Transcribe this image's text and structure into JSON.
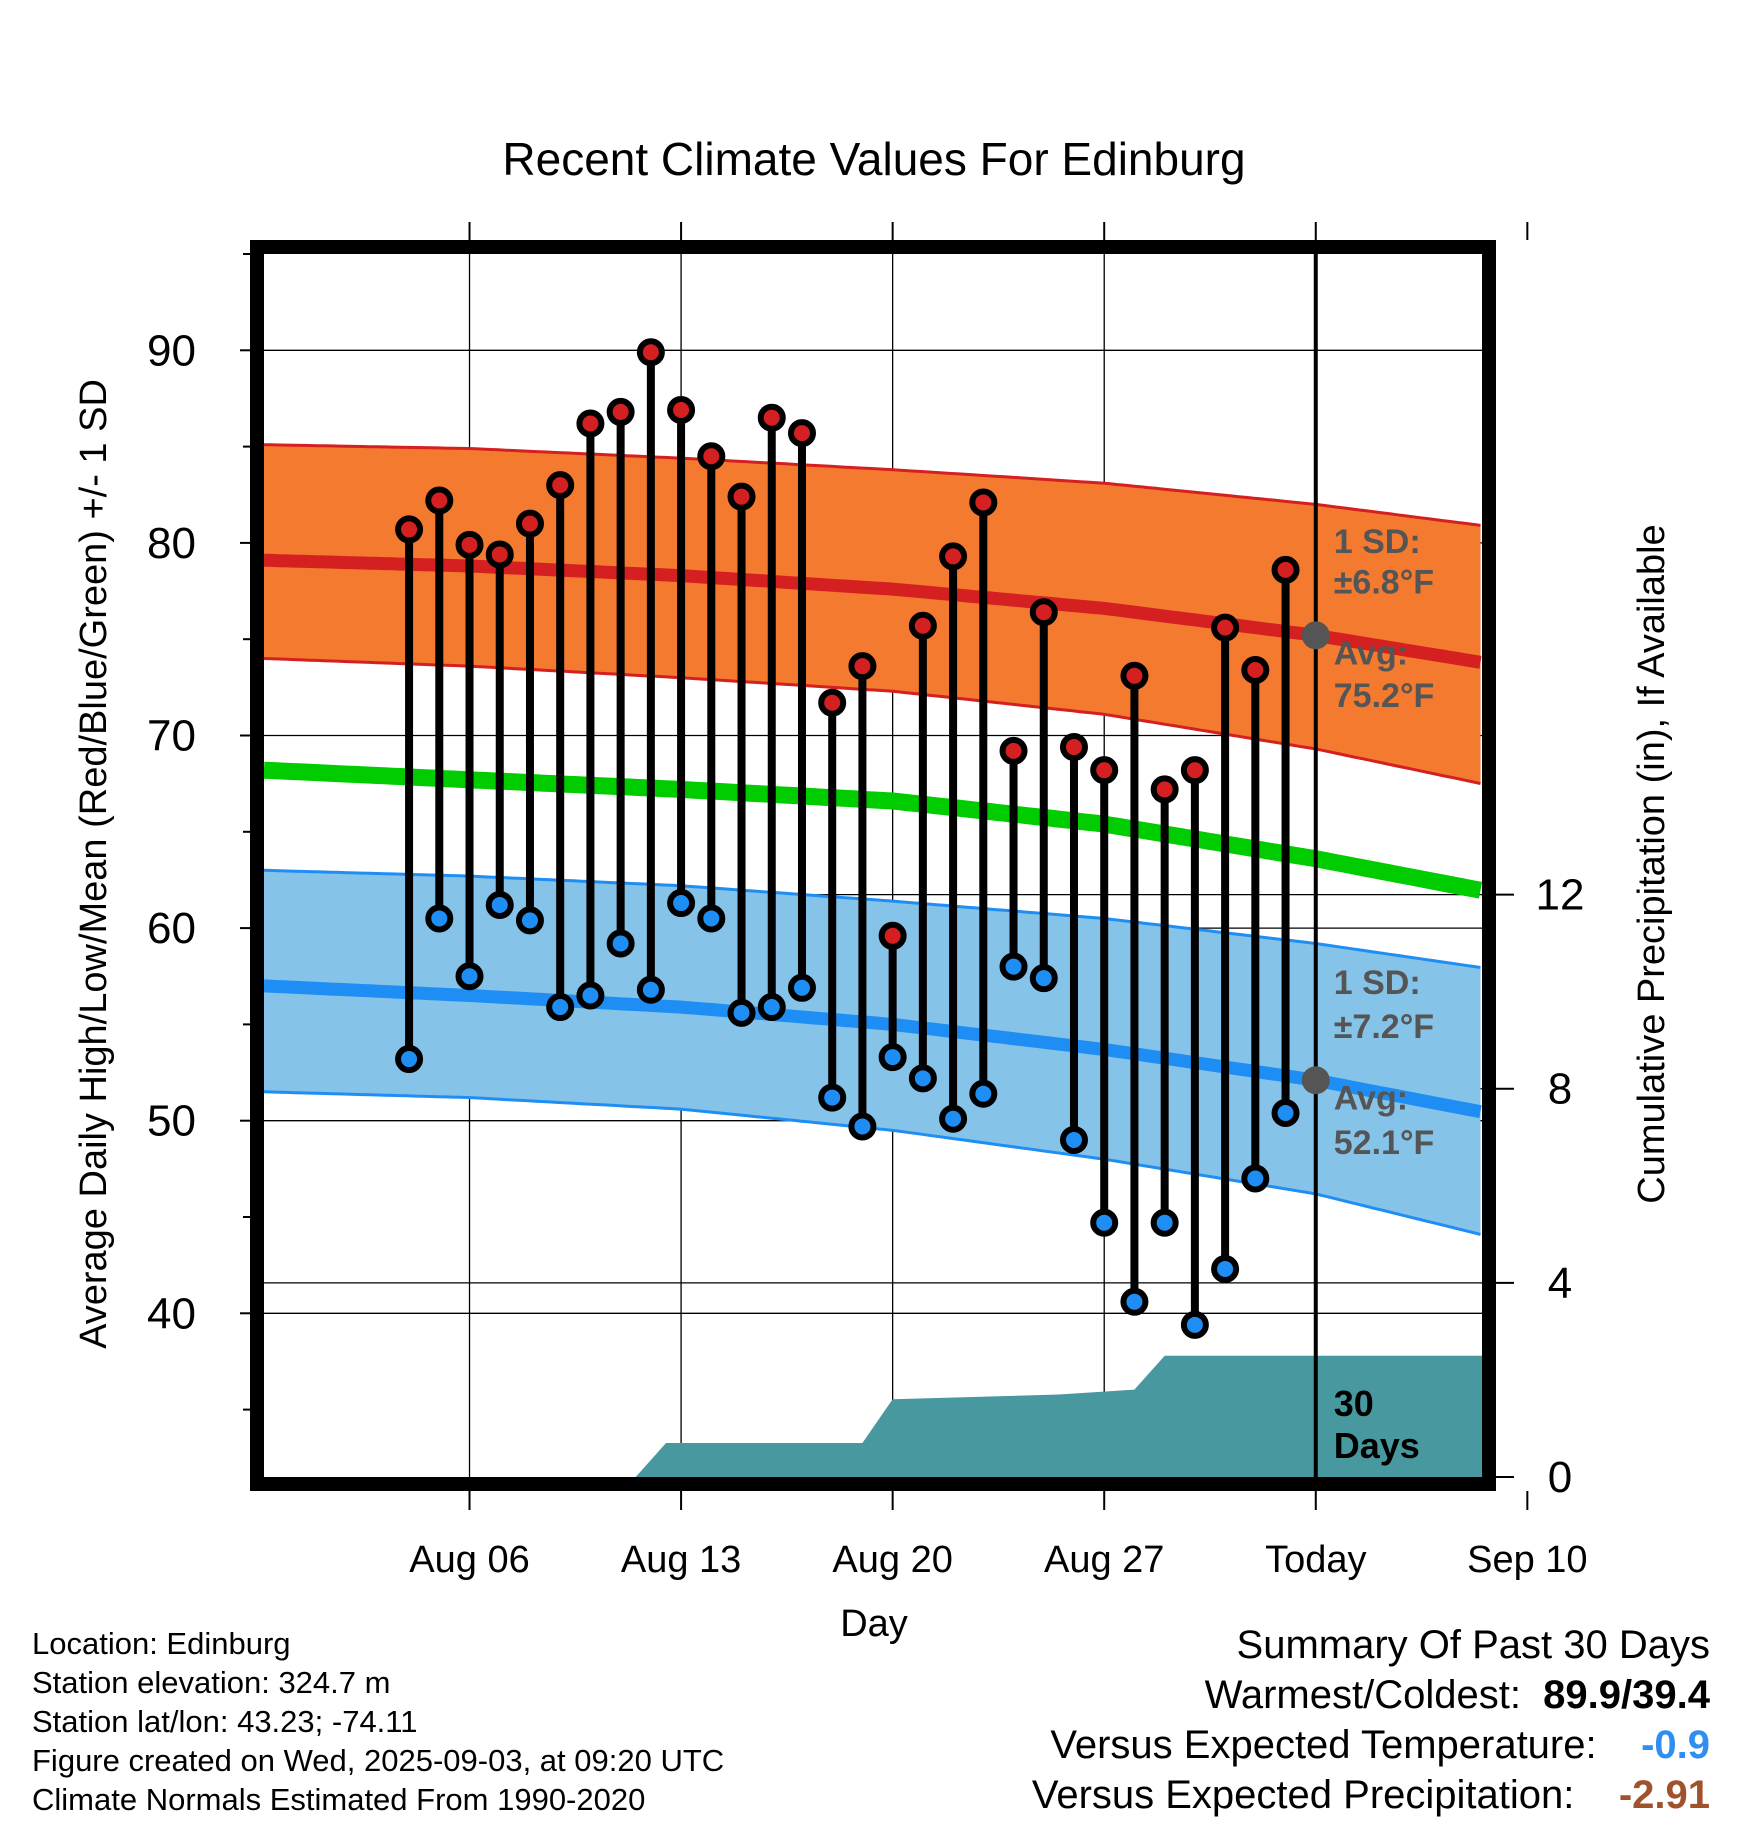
{
  "chart_data": {
    "type": "line",
    "title": "Recent Climate Values For Edinburg",
    "xlabel": "Day",
    "ylabel": "Average Daily High/Low/Mean (Red/Blue/Green) +/- 1 SD",
    "y2label": "Cumulative Precipitation (in), If Available",
    "x_range_days": [
      -1.8,
      38.5
    ],
    "ylim": [
      31.5,
      95
    ],
    "y2lim": [
      0,
      25.2
    ],
    "y_ticks": [
      40,
      50,
      60,
      70,
      80,
      90
    ],
    "y_minor_ticks": [
      35,
      45,
      55,
      65,
      75,
      85,
      95
    ],
    "y2_ticks": [
      0,
      4,
      8,
      12
    ],
    "x_ticks": [
      {
        "label": "Aug 06",
        "day": 5
      },
      {
        "label": "Aug 13",
        "day": 12
      },
      {
        "label": "Aug 20",
        "day": 19
      },
      {
        "label": "Aug 27",
        "day": 26
      },
      {
        "label": "Today",
        "day": 33
      },
      {
        "label": "Sep 10",
        "day": 40
      }
    ],
    "today_day": 33,
    "colors": {
      "high": "#d42020",
      "low": "#1f8ef4",
      "mean": "#00cc00",
      "high_band": "#f47a30",
      "low_band": "#86c3e8",
      "precip": "#4898a0"
    },
    "normals": {
      "days": [
        -1.8,
        5,
        12,
        19,
        26,
        33,
        40,
        42.3
      ],
      "high_avg": [
        79.1,
        78.8,
        78.3,
        77.6,
        76.6,
        75.2,
        73.4,
        72.0
      ],
      "high_upper": [
        85.1,
        84.9,
        84.4,
        83.8,
        83.1,
        82.0,
        80.6,
        79.5
      ],
      "high_lower": [
        74.0,
        73.6,
        73.0,
        72.3,
        71.1,
        69.3,
        67.0,
        65.7
      ],
      "mean": [
        68.2,
        67.7,
        67.2,
        66.6,
        65.4,
        63.6,
        61.5,
        60.4
      ],
      "low_avg": [
        57.0,
        56.5,
        55.9,
        55.0,
        53.7,
        52.1,
        50.0,
        49.0
      ],
      "low_upper": [
        63.0,
        62.7,
        62.2,
        61.4,
        60.5,
        59.2,
        57.6,
        56.8
      ],
      "low_lower": [
        51.5,
        51.2,
        50.6,
        49.5,
        48.0,
        46.2,
        43.5,
        42.2
      ]
    },
    "series": [
      {
        "name": "High",
        "values": [
          80.7,
          82.2,
          79.9,
          79.4,
          81.0,
          83.0,
          86.2,
          86.8,
          89.9,
          86.9,
          84.5,
          82.4,
          86.5,
          85.7,
          71.7,
          73.6,
          59.6,
          75.7,
          79.3,
          82.1,
          69.2,
          76.4,
          69.4,
          68.2,
          73.1,
          67.2,
          68.2,
          75.6,
          73.4,
          78.6
        ]
      },
      {
        "name": "Low",
        "values": [
          53.2,
          60.5,
          57.5,
          61.2,
          60.4,
          55.9,
          56.5,
          59.2,
          56.8,
          61.3,
          60.5,
          55.6,
          55.9,
          56.9,
          51.2,
          49.7,
          53.3,
          52.2,
          50.1,
          51.4,
          58.0,
          57.4,
          49.0,
          44.7,
          40.6,
          44.7,
          39.4,
          42.3,
          47.0,
          50.4
        ]
      }
    ],
    "days_observed": [
      3,
      4,
      5,
      6,
      7,
      8,
      9,
      10,
      11,
      12,
      13,
      14,
      15,
      16,
      17,
      18,
      19,
      20,
      21,
      22,
      23,
      24,
      25,
      26,
      27,
      28,
      29,
      30,
      31,
      32
    ],
    "precip_cumulative": {
      "days": [
        -1.8,
        10.5,
        11.5,
        18,
        19,
        24.5,
        27,
        28,
        38.5
      ],
      "values": [
        0,
        0,
        0.7,
        0.7,
        1.6,
        1.7,
        1.8,
        2.5,
        2.5
      ]
    },
    "annotations": {
      "high_sd_label": "1 SD:",
      "high_sd_value": "±6.8°F",
      "high_avg_label": "Avg:",
      "high_avg_value": "75.2°F",
      "low_sd_label": "1 SD:",
      "low_sd_value": "±7.2°F",
      "low_avg_label": "Avg:",
      "low_avg_value": "52.1°F",
      "window_label_1": "30",
      "window_label_2": "Days"
    }
  },
  "info": {
    "location": "Location: Edinburg",
    "elevation": "Station elevation: 324.7 m",
    "latlon": "Station lat/lon: 43.23; -74.11",
    "created": "Figure created on Wed, 2025-09-03, at 09:20 UTC",
    "normals": "Climate Normals Estimated From 1990-2020"
  },
  "summary": {
    "heading": "Summary Of Past 30 Days",
    "warmest_coldest_label": "Warmest/Coldest:",
    "warmest_coldest_value": "89.9/39.4",
    "temp_label": "Versus Expected Temperature:",
    "temp_value": "-0.9",
    "temp_color": "#2f8ef0",
    "precip_label": "Versus Expected Precipitation:",
    "precip_value": "-2.91",
    "precip_color": "#a0522d"
  }
}
